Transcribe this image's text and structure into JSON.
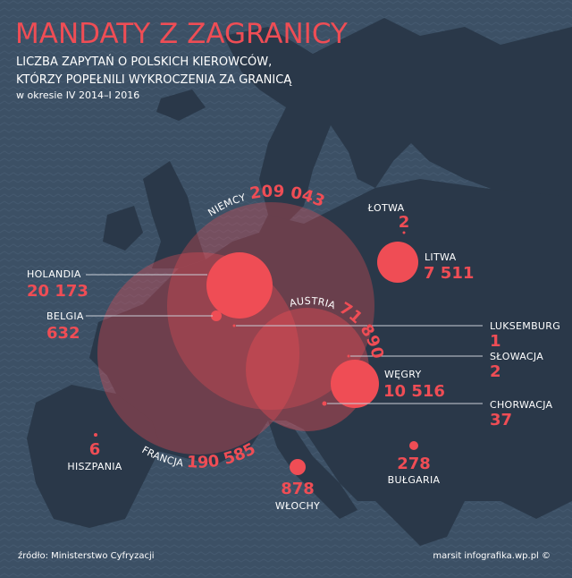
{
  "header": {
    "title": "MANDATY Z ZAGRANICY",
    "subtitle_line1": "LICZBA ZAPYTAŃ O POLSKICH KIEROWCÓW,",
    "subtitle_line2": "KTÓRZY POPEŁNILI WYKROCZENIA ZA GRANICĄ",
    "period": "w okresie IV 2014–I 2016"
  },
  "colors": {
    "accent": "#ef4d55",
    "sea": "#3c5065",
    "land": "#2a3849"
  },
  "countries": {
    "niemcy": {
      "name": "NIEMCY",
      "value": "209 043"
    },
    "francja": {
      "name": "FRANCJA",
      "value": "190 585"
    },
    "austria": {
      "name": "AUSTRIA",
      "value": "71 890"
    },
    "holandia": {
      "name": "HOLANDIA",
      "value": "20 173"
    },
    "wegry": {
      "name": "WĘGRY",
      "value": "10 516"
    },
    "litwa": {
      "name": "LITWA",
      "value": "7 511"
    },
    "wlochy": {
      "name": "WŁOCHY",
      "value": "878"
    },
    "belgia": {
      "name": "BELGIA",
      "value": "632"
    },
    "bulgaria": {
      "name": "BUŁGARIA",
      "value": "278"
    },
    "chorwacja": {
      "name": "CHORWACJA",
      "value": "37"
    },
    "hiszpania": {
      "name": "HISZPANIA",
      "value": "6"
    },
    "lotwa": {
      "name": "ŁOTWA",
      "value": "2"
    },
    "slowacja": {
      "name": "SŁOWACJA",
      "value": "2"
    },
    "luksemburg": {
      "name": "LUKSEMBURG",
      "value": "1"
    }
  },
  "footer": {
    "source": "źródło: Ministerstwo Cyfryzacji",
    "credit": "marsit infografika.wp.pl ©"
  }
}
